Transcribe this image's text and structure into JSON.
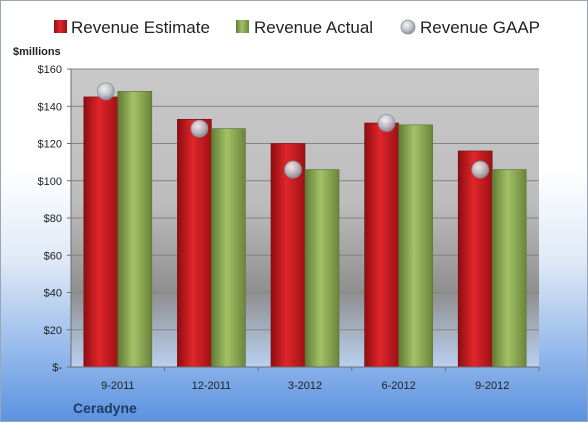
{
  "chart_data": {
    "type": "bar",
    "ylabel": "$millions",
    "company": "Ceradyne",
    "categories": [
      "9-2011",
      "12-2011",
      "3-2012",
      "6-2012",
      "9-2012"
    ],
    "series": [
      {
        "name": "Revenue Estimate",
        "values": [
          145,
          133,
          120,
          131,
          116
        ],
        "color": "#c8151b",
        "kind": "bar"
      },
      {
        "name": "Revenue Actual",
        "values": [
          148,
          128,
          106,
          130,
          106
        ],
        "color": "#8eae55",
        "kind": "bar"
      },
      {
        "name": "Revenue GAAP",
        "values": [
          148,
          128,
          106,
          131,
          106
        ],
        "color": "#b7bcc4",
        "kind": "marker"
      }
    ],
    "ylim": [
      0,
      160
    ],
    "yticks": [
      0,
      20,
      40,
      60,
      80,
      100,
      120,
      140,
      160
    ],
    "ytick_labels": [
      "$-",
      "$20",
      "$40",
      "$60",
      "$80",
      "$100",
      "$120",
      "$140",
      "$160"
    ],
    "legend_position": "top",
    "grid": true
  }
}
